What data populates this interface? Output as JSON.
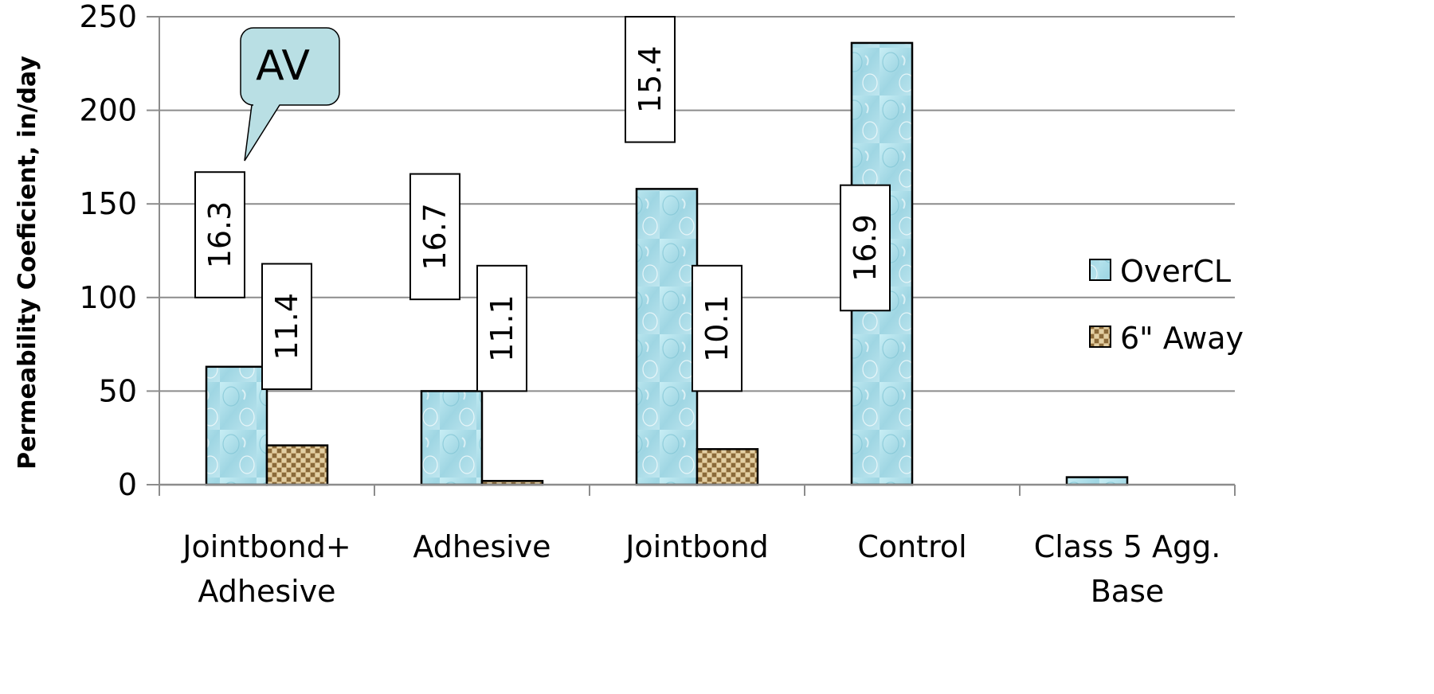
{
  "chart_data": {
    "type": "bar",
    "title": "",
    "xlabel": "",
    "ylabel": "Permeability Coeficient, in/day",
    "ylim": [
      0,
      250
    ],
    "yticks": [
      0,
      50,
      100,
      150,
      200,
      250
    ],
    "grid": true,
    "legend_position": "right",
    "categories": [
      [
        "Jointbond+",
        "Adhesive"
      ],
      [
        "Adhesive"
      ],
      [
        "Jointbond"
      ],
      [
        "Control"
      ],
      [
        "Class 5 Agg.",
        "Base"
      ]
    ],
    "series": [
      {
        "name": "OverCL",
        "color": "#a8dbe6",
        "values": [
          63,
          50,
          158,
          236,
          4
        ]
      },
      {
        "name": "6\" Away",
        "color": "#c9ad7c",
        "values": [
          21,
          2,
          19,
          null,
          null
        ]
      }
    ],
    "data_labels": [
      {
        "text": "16.3",
        "series": 0,
        "category": 0,
        "y_top": 167,
        "y_bottom": 100
      },
      {
        "text": "11.4",
        "series": 1,
        "category": 0,
        "y_top": 118,
        "y_bottom": 51
      },
      {
        "text": "16.7",
        "series": 0,
        "category": 1,
        "y_top": 166,
        "y_bottom": 99
      },
      {
        "text": "11.1",
        "series": 1,
        "category": 1,
        "y_top": 117,
        "y_bottom": 50
      },
      {
        "text": "15.4",
        "series": 0,
        "category": 2,
        "y_top": 250,
        "y_bottom": 183
      },
      {
        "text": "10.1",
        "series": 1,
        "category": 2,
        "y_top": 117,
        "y_bottom": 50
      },
      {
        "text": "16.9",
        "series": 0,
        "category": 3,
        "y_top": 160,
        "y_bottom": 93
      }
    ],
    "annotation": {
      "text": "AV"
    }
  }
}
